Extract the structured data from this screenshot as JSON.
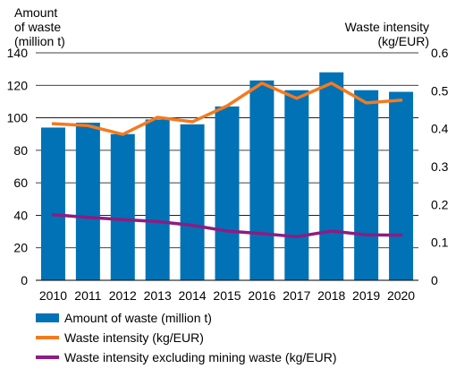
{
  "chart_data": {
    "type": "bar",
    "categories": [
      "2010",
      "2011",
      "2012",
      "2013",
      "2014",
      "2015",
      "2016",
      "2017",
      "2018",
      "2019",
      "2020"
    ],
    "left_axis": {
      "label_lines": [
        "Amount",
        "of waste",
        "(million t)"
      ],
      "ticks": [
        "0",
        "20",
        "40",
        "60",
        "80",
        "100",
        "120",
        "140"
      ],
      "ylim": [
        0,
        140
      ]
    },
    "right_axis": {
      "label_lines": [
        "Waste intensity",
        "(kg/EUR)"
      ],
      "ticks": [
        "0",
        "0.1",
        "0.2",
        "0.3",
        "0.4",
        "0.5",
        "0.6"
      ],
      "ylim": [
        0,
        0.6
      ]
    },
    "series": [
      {
        "name": "Amount of waste (million t)",
        "kind": "bar",
        "axis": "left",
        "color": "#0072b5",
        "values": [
          94,
          97,
          90,
          99,
          96,
          107,
          123,
          117,
          128,
          117,
          116
        ]
      },
      {
        "name": "Waste intensity (kg/EUR)",
        "kind": "line",
        "axis": "right",
        "color": "#f47a1f",
        "values": [
          0.413,
          0.408,
          0.385,
          0.43,
          0.418,
          0.46,
          0.52,
          0.48,
          0.52,
          0.468,
          0.475
        ]
      },
      {
        "name": "Waste intensity excluding mining waste (kg/EUR)",
        "kind": "line",
        "axis": "right",
        "color": "#8c1d82",
        "values": [
          0.173,
          0.166,
          0.16,
          0.155,
          0.145,
          0.13,
          0.123,
          0.115,
          0.13,
          0.12,
          0.119
        ]
      }
    ],
    "grid": "horizontal",
    "legend_position": "bottom"
  }
}
